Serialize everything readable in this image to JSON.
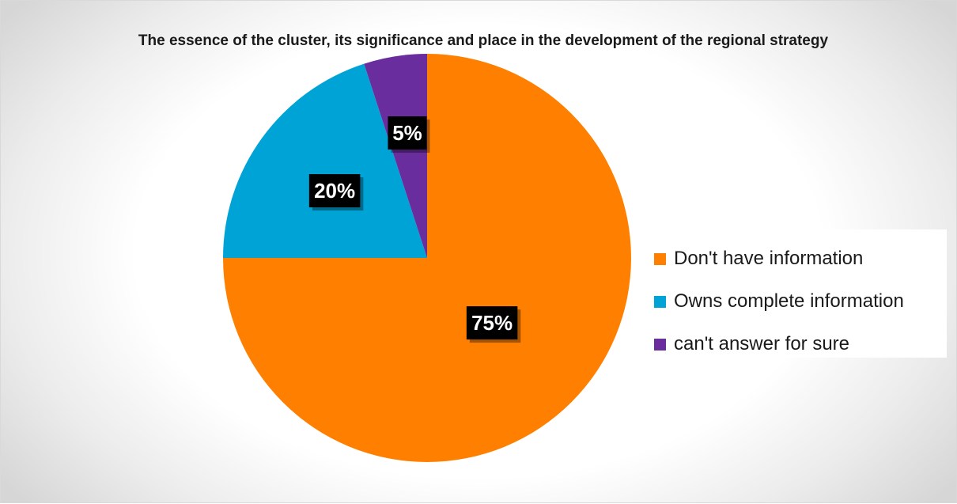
{
  "chart_data": {
    "type": "pie",
    "title": "The essence of the cluster, its significance and place in the development of the regional strategy",
    "slices": [
      {
        "name": "Don't have information",
        "value": 75,
        "label": "75%",
        "color": "#ff8000"
      },
      {
        "name": "Owns complete information",
        "value": 20,
        "label": "20%",
        "color": "#00a3d6"
      },
      {
        "name": "can't answer for sure",
        "value": 5,
        "label": "5%",
        "color": "#6a2d9e"
      }
    ],
    "start_angle": "12 o'clock",
    "direction": "clockwise",
    "legend_position": "right",
    "data_label_style": "white bold text on black box"
  }
}
